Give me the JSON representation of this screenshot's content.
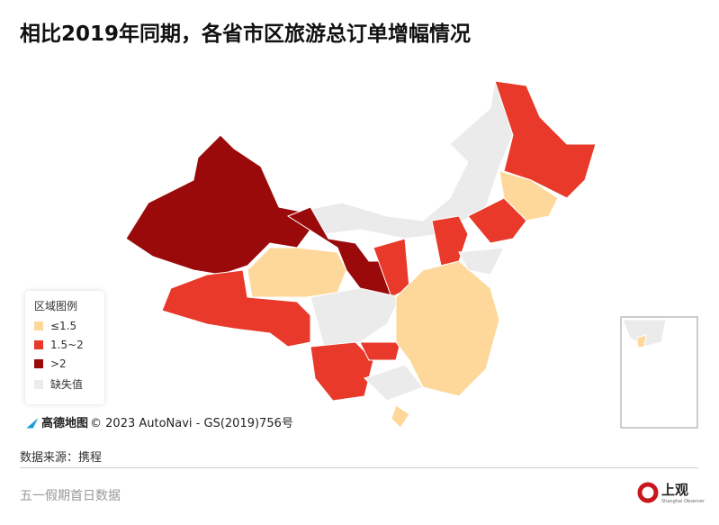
{
  "header": {
    "title": "相比2019年同期，各省市区旅游总订单增幅情况"
  },
  "legend": {
    "title": "区域图例",
    "items": [
      {
        "label": "≤1.5",
        "color": "#fdd89a"
      },
      {
        "label": "1.5~2",
        "color": "#e8392a"
      },
      {
        "label": ">2",
        "color": "#9b0a0a"
      },
      {
        "label": "缺失值",
        "color": "#ebebeb"
      }
    ]
  },
  "attribution": {
    "brand": "高德地图",
    "text": "© 2023 AutoNavi - GS(2019)756号"
  },
  "source": "数据来源：携程",
  "footer": {
    "note": "五一假期首日数据",
    "logo": "上观",
    "logo_sub": "Shanghai Observer"
  }
}
